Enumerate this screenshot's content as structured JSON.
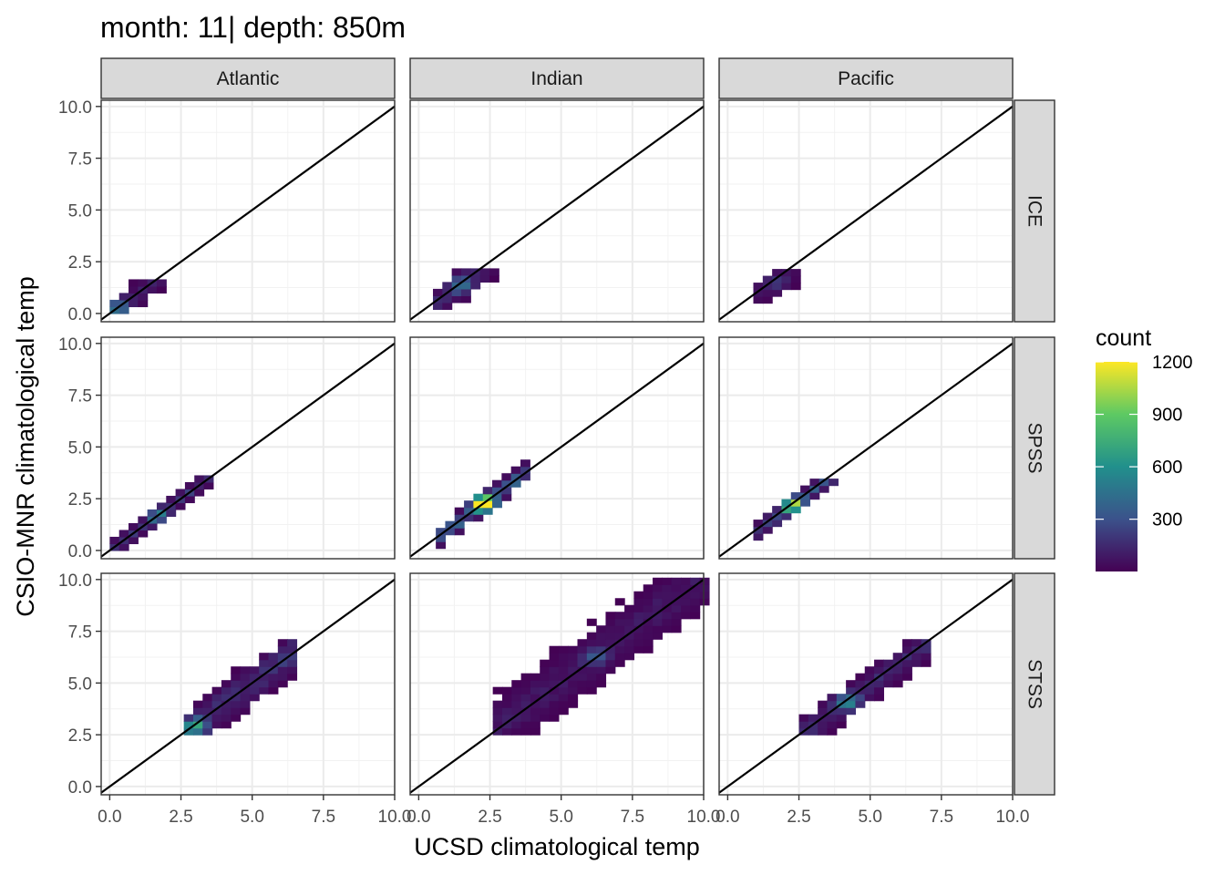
{
  "chart_data": {
    "type": "heatmap",
    "title": "month: 11| depth: 850m",
    "xlabel": "UCSD climatological temp",
    "ylabel": "CSIO-MNR climatological temp",
    "xlim": [
      -0.3,
      10.0
    ],
    "ylim": [
      -0.4,
      10.3
    ],
    "x_ticks": [
      "0.0",
      "2.5",
      "5.0",
      "7.5",
      "10.0"
    ],
    "y_ticks": [
      "0.0",
      "2.5",
      "5.0",
      "7.5",
      "10.0"
    ],
    "col_facets": [
      "Atlantic",
      "Indian",
      "Pacific"
    ],
    "row_facets": [
      "ICE",
      "SPSS",
      "STSS"
    ],
    "reference_line": {
      "slope": 1,
      "intercept": 0,
      "color": "#000000"
    },
    "grid": true,
    "legend": {
      "title": "count",
      "position": "right",
      "ticks": [
        "300",
        "600",
        "900",
        "1200"
      ],
      "min": 1,
      "max": 1200,
      "palette": [
        "#440154",
        "#3b528b",
        "#21908c",
        "#5dc963",
        "#fde725"
      ]
    },
    "bin_width": 0.33,
    "panels": [
      {
        "row": "ICE",
        "col": "Atlantic",
        "x": [
          0.0,
          1.9
        ],
        "y": [
          0.0,
          1.6
        ],
        "band": 0.7,
        "offset": -0.05,
        "hotspot": {
          "x": 0.3,
          "y": 0.3,
          "count": 400
        },
        "peak": 150
      },
      {
        "row": "ICE",
        "col": "Indian",
        "x": [
          0.5,
          2.6
        ],
        "y": [
          0.2,
          2.1
        ],
        "band": 0.8,
        "offset": -0.1,
        "hotspot": {
          "x": 1.5,
          "y": 1.4,
          "count": 350
        },
        "peak": 200
      },
      {
        "row": "ICE",
        "col": "Pacific",
        "x": [
          0.9,
          2.4
        ],
        "y": [
          0.5,
          2.0
        ],
        "band": 0.8,
        "offset": -0.15,
        "hotspot": {
          "x": 1.7,
          "y": 1.5,
          "count": 150
        },
        "peak": 100
      },
      {
        "row": "SPSS",
        "col": "Atlantic",
        "x": [
          0.0,
          3.4
        ],
        "y": [
          0.0,
          3.4
        ],
        "band": 0.45,
        "offset": 0.0,
        "hotspot": {
          "x": 1.7,
          "y": 1.7,
          "count": 350
        },
        "peak": 250
      },
      {
        "row": "SPSS",
        "col": "Indian",
        "x": [
          0.6,
          3.6
        ],
        "y": [
          0.1,
          4.2
        ],
        "band": 0.55,
        "offset": 0.0,
        "hotspot": {
          "x": 2.3,
          "y": 2.3,
          "count": 1200
        },
        "peak": 500
      },
      {
        "row": "SPSS",
        "col": "Pacific",
        "x": [
          0.9,
          3.6
        ],
        "y": [
          0.5,
          3.3
        ],
        "band": 0.5,
        "offset": -0.1,
        "hotspot": {
          "x": 2.3,
          "y": 2.2,
          "count": 750
        },
        "peak": 400
      },
      {
        "row": "STSS",
        "col": "Atlantic",
        "x": [
          2.6,
          6.3
        ],
        "y": [
          2.5,
          7.3
        ],
        "band": 1.1,
        "offset": 0.0,
        "hotspot": {
          "x": 3.0,
          "y": 2.9,
          "count": 550
        },
        "peak": 250
      },
      {
        "row": "STSS",
        "col": "Indian",
        "x": [
          2.6,
          9.9
        ],
        "y": [
          2.5,
          10.0
        ],
        "band": 1.5,
        "offset": 0.15,
        "hotspot": {
          "x": 6.2,
          "y": 6.3,
          "count": 300
        },
        "peak": 120
      },
      {
        "row": "STSS",
        "col": "Pacific",
        "x": [
          2.5,
          7.1
        ],
        "y": [
          2.5,
          7.1
        ],
        "band": 0.9,
        "offset": -0.1,
        "hotspot": {
          "x": 4.2,
          "y": 4.1,
          "count": 450
        },
        "peak": 200
      }
    ]
  }
}
